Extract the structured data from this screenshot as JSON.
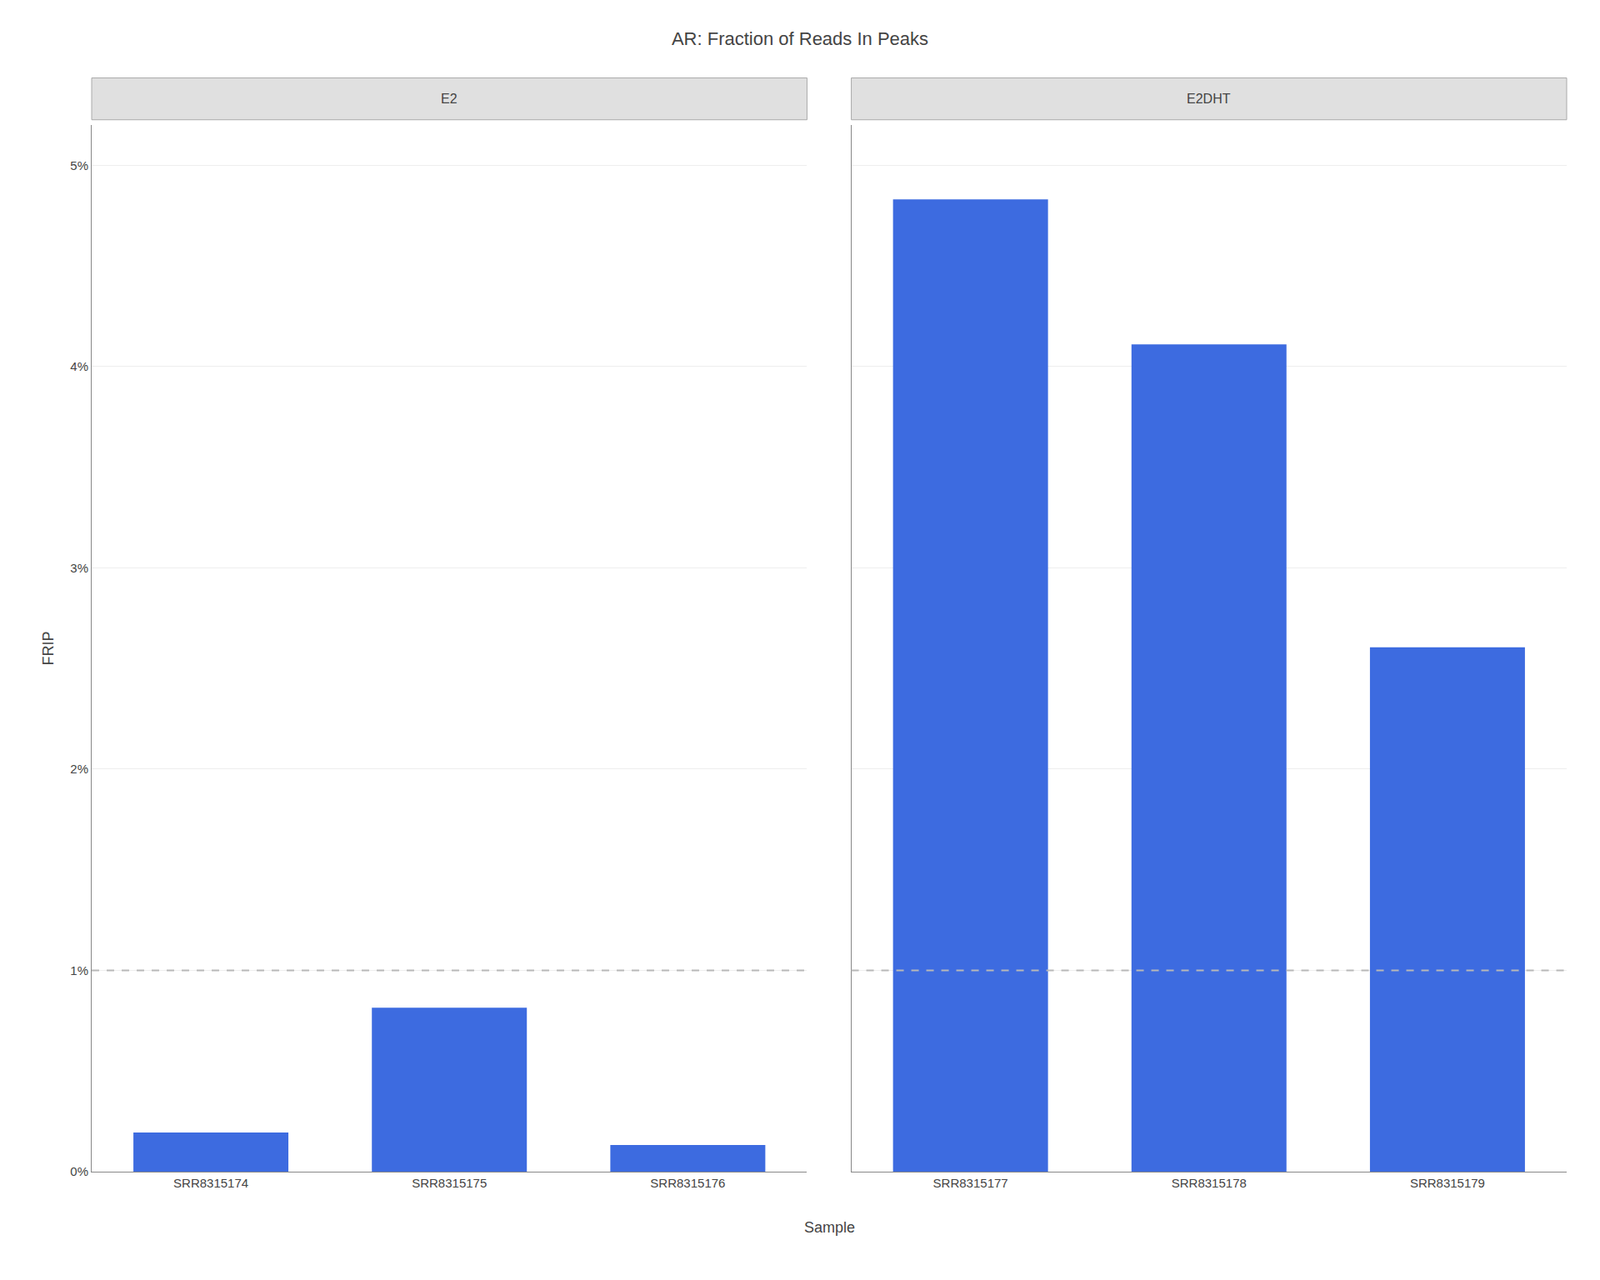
{
  "title": "AR: Fraction of Reads In Peaks",
  "xlabel": "Sample",
  "chart_data": [
    {
      "type": "bar",
      "title": "E2",
      "ylabel": "FRIP",
      "categories": [
        "SRR8315174",
        "SRR8315175",
        "SRR8315176"
      ],
      "values": [
        0.00195,
        0.00815,
        0.00132
      ],
      "color": "#3d6be0",
      "ylim": [
        0,
        0.052
      ],
      "yticks": [
        {
          "value": 0,
          "label": "0%"
        },
        {
          "value": 0.01,
          "label": "1%"
        },
        {
          "value": 0.02,
          "label": "2%"
        },
        {
          "value": 0.03,
          "label": "3%"
        },
        {
          "value": 0.04,
          "label": "4%"
        },
        {
          "value": 0.05,
          "label": "5%"
        }
      ],
      "grid": true,
      "threshold": {
        "value": 0.01,
        "color": "#b8b8b8",
        "line_style": "dashed"
      }
    },
    {
      "type": "bar",
      "title": "E2DHT",
      "categories": [
        "SRR8315177",
        "SRR8315178",
        "SRR8315179"
      ],
      "values": [
        0.0483,
        0.0411,
        0.02605
      ],
      "color": "#3d6be0",
      "ylim": [
        0,
        0.052
      ],
      "yticks": [
        {
          "value": 0,
          "label": "0%"
        },
        {
          "value": 0.01,
          "label": "1%"
        },
        {
          "value": 0.02,
          "label": "2%"
        },
        {
          "value": 0.03,
          "label": "3%"
        },
        {
          "value": 0.04,
          "label": "4%"
        },
        {
          "value": 0.05,
          "label": "5%"
        }
      ],
      "grid": true,
      "tick_labels": "x",
      "threshold": {
        "value": 0.01,
        "color": "#b8b8b8",
        "line_style": "dashed"
      }
    }
  ]
}
